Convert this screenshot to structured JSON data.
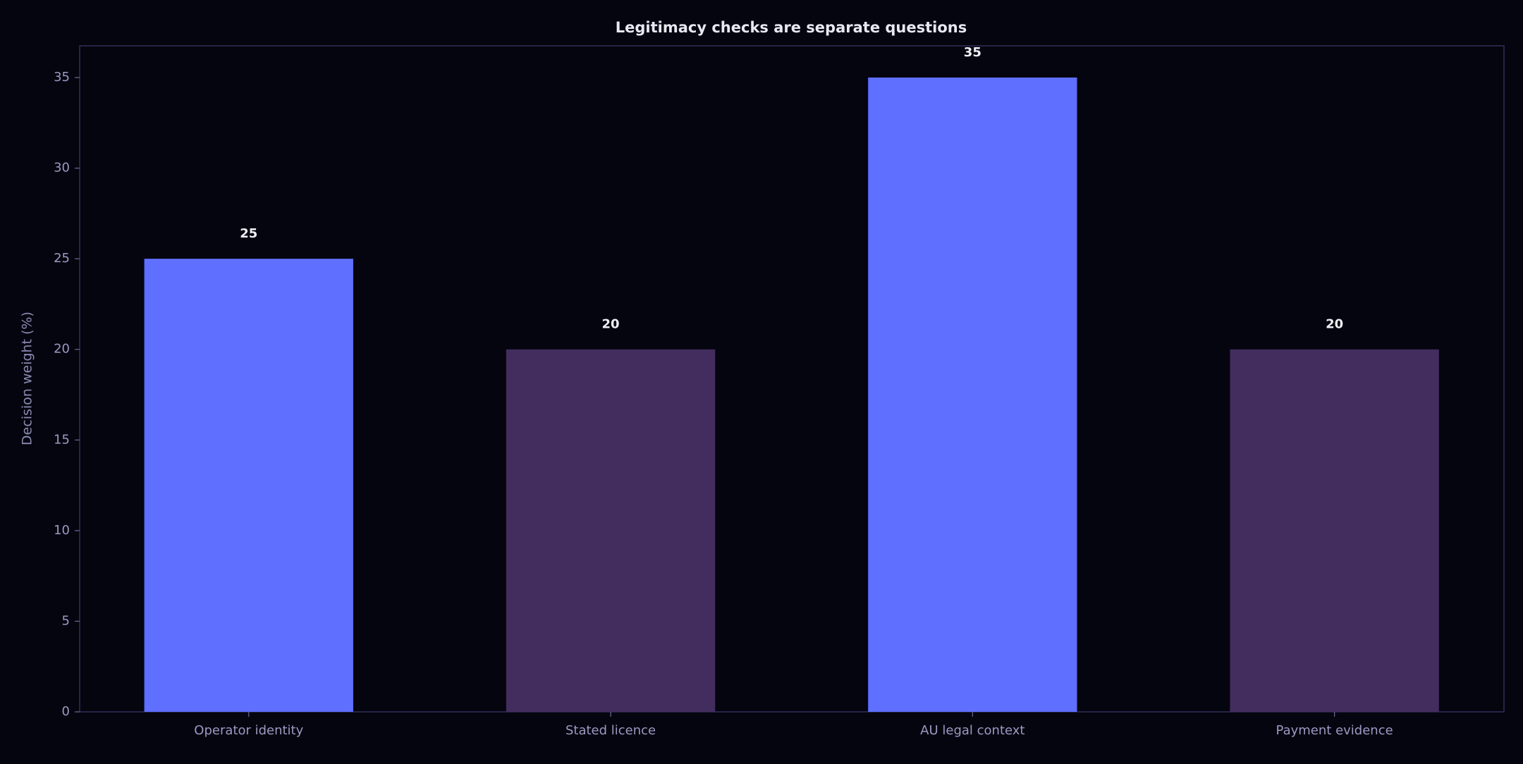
{
  "chart_data": {
    "type": "bar",
    "title": "Legitimacy checks are separate questions",
    "y_label": "Decision weight (%)",
    "categories": [
      "Operator identity",
      "Stated licence",
      "AU legal context",
      "Payment evidence"
    ],
    "values": [
      25,
      20,
      35,
      20
    ],
    "colors": [
      "#5f6fff",
      "#432d5e",
      "#5f6fff",
      "#432d5e"
    ],
    "ylim": [
      0,
      36.75
    ],
    "yticks": [
      0,
      5,
      10,
      15,
      20,
      25,
      30,
      35
    ],
    "grid": false
  }
}
